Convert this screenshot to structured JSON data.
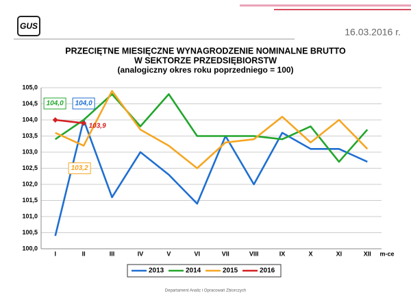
{
  "header": {
    "logo": "GUS",
    "date": "16.03.2016 r."
  },
  "footer": "Departament Analiz i Opracowań Zbiorczych",
  "chart_data": {
    "type": "line",
    "title": "PRZECIĘTNE MIESIĘCZNE WYNAGRODZENIE NOMINALNE BRUTTO",
    "title2": "W SEKTORZE PRZEDSIĘBIORSTW",
    "subtitle": "(analogiczny okres roku poprzedniego = 100)",
    "x_label": "m-ce",
    "categories": [
      "I",
      "II",
      "III",
      "IV",
      "V",
      "VI",
      "VII",
      "VIII",
      "IX",
      "X",
      "XI",
      "XII"
    ],
    "series": [
      {
        "name": "2013",
        "color": "#1f6fd0",
        "values": [
          100.4,
          104.0,
          101.6,
          103.0,
          102.3,
          101.4,
          103.5,
          102.0,
          103.6,
          103.1,
          103.1,
          102.7
        ],
        "value_labels": [
          null,
          "104,0",
          null,
          null,
          null,
          null,
          null,
          null,
          null,
          null,
          null,
          null
        ]
      },
      {
        "name": "2014",
        "color": "#22a62c",
        "values": [
          103.4,
          104.0,
          104.8,
          103.8,
          104.8,
          103.5,
          103.5,
          103.5,
          103.4,
          103.8,
          102.7,
          103.7
        ],
        "value_labels": [
          null,
          "104,0",
          null,
          null,
          null,
          null,
          null,
          null,
          null,
          null,
          null,
          null
        ]
      },
      {
        "name": "2015",
        "color": "#f5a623",
        "values": [
          103.6,
          103.2,
          104.9,
          103.7,
          103.2,
          102.5,
          103.3,
          103.4,
          104.1,
          103.3,
          104.0,
          103.1
        ],
        "value_labels": [
          null,
          "103,2",
          null,
          null,
          null,
          null,
          null,
          null,
          null,
          null,
          null,
          null
        ]
      },
      {
        "name": "2016",
        "color": "#d42020",
        "values": [
          104.0,
          103.9,
          null,
          null,
          null,
          null,
          null,
          null,
          null,
          null,
          null,
          null
        ],
        "value_labels": [
          null,
          "103,9",
          null,
          null,
          null,
          null,
          null,
          null,
          null,
          null,
          null,
          null
        ]
      }
    ],
    "ylim": [
      100.0,
      105.0
    ],
    "yticks": [
      {
        "value": 100.0,
        "label": "100,0"
      },
      {
        "value": 100.5,
        "label": "100,5"
      },
      {
        "value": 101.0,
        "label": "101,0"
      },
      {
        "value": 101.5,
        "label": "101,5"
      },
      {
        "value": 102.0,
        "label": "102,0"
      },
      {
        "value": 102.5,
        "label": "102,5"
      },
      {
        "value": 103.0,
        "label": "103,0"
      },
      {
        "value": 103.5,
        "label": "103,5"
      },
      {
        "value": 104.0,
        "label": "104,0"
      },
      {
        "value": 104.5,
        "label": "104,5"
      },
      {
        "value": 105.0,
        "label": "105,0"
      }
    ],
    "grid": true,
    "legend": "bottom"
  }
}
